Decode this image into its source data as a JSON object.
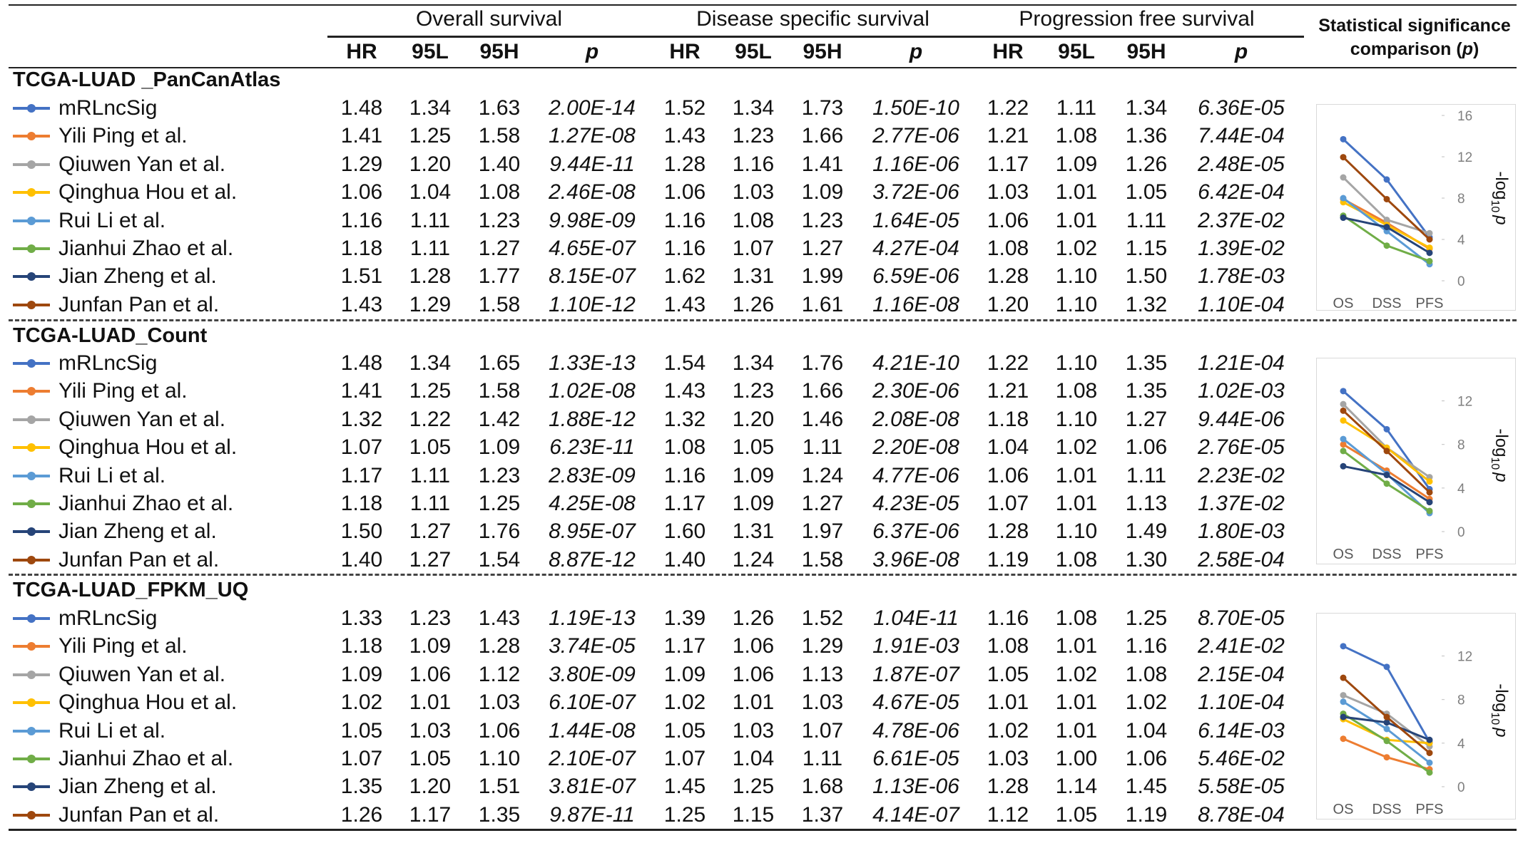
{
  "header": {
    "groups": [
      "Overall survival",
      "Disease specific survival",
      "Progression free survival"
    ],
    "columns": [
      "HR",
      "95L",
      "95H",
      "p"
    ],
    "stat_title_line1": "Statistical significance",
    "stat_title_line2": "comparison (",
    "stat_title_p": "p",
    "stat_title_close": ")"
  },
  "series_colors": [
    "#4472C4",
    "#ED7D31",
    "#A5A5A5",
    "#FFC000",
    "#5B9BD5",
    "#70AD47",
    "#264478",
    "#9E480E"
  ],
  "sections": [
    {
      "title": "TCGA-LUAD _PanCanAtlas",
      "rows": [
        {
          "label": "mRLncSig",
          "os": [
            "1.48",
            "1.34",
            "1.63",
            "2.00E-14"
          ],
          "dss": [
            "1.52",
            "1.34",
            "1.73",
            "1.50E-10"
          ],
          "pfs": [
            "1.22",
            "1.11",
            "1.34",
            "6.36E-05"
          ]
        },
        {
          "label": "Yili Ping et al.",
          "os": [
            "1.41",
            "1.25",
            "1.58",
            "1.27E-08"
          ],
          "dss": [
            "1.43",
            "1.23",
            "1.66",
            "2.77E-06"
          ],
          "pfs": [
            "1.21",
            "1.08",
            "1.36",
            "7.44E-04"
          ]
        },
        {
          "label": "Qiuwen Yan et al.",
          "os": [
            "1.29",
            "1.20",
            "1.40",
            "9.44E-11"
          ],
          "dss": [
            "1.28",
            "1.16",
            "1.41",
            "1.16E-06"
          ],
          "pfs": [
            "1.17",
            "1.09",
            "1.26",
            "2.48E-05"
          ]
        },
        {
          "label": "Qinghua Hou et al.",
          "os": [
            "1.06",
            "1.04",
            "1.08",
            "2.46E-08"
          ],
          "dss": [
            "1.06",
            "1.03",
            "1.09",
            "3.72E-06"
          ],
          "pfs": [
            "1.03",
            "1.01",
            "1.05",
            "6.42E-04"
          ]
        },
        {
          "label": "Rui Li et al.",
          "os": [
            "1.16",
            "1.11",
            "1.23",
            "9.98E-09"
          ],
          "dss": [
            "1.16",
            "1.08",
            "1.23",
            "1.64E-05"
          ],
          "pfs": [
            "1.06",
            "1.01",
            "1.11",
            "2.37E-02"
          ]
        },
        {
          "label": "Jianhui Zhao et al.",
          "os": [
            "1.18",
            "1.11",
            "1.27",
            "4.65E-07"
          ],
          "dss": [
            "1.16",
            "1.07",
            "1.27",
            "4.27E-04"
          ],
          "pfs": [
            "1.08",
            "1.02",
            "1.15",
            "1.39E-02"
          ]
        },
        {
          "label": "Jian Zheng et al.",
          "os": [
            "1.51",
            "1.28",
            "1.77",
            "8.15E-07"
          ],
          "dss": [
            "1.62",
            "1.31",
            "1.99",
            "6.59E-06"
          ],
          "pfs": [
            "1.28",
            "1.10",
            "1.50",
            "1.78E-03"
          ]
        },
        {
          "label": "Junfan Pan et al.",
          "os": [
            "1.43",
            "1.29",
            "1.58",
            "1.10E-12"
          ],
          "dss": [
            "1.43",
            "1.26",
            "1.61",
            "1.16E-08"
          ],
          "pfs": [
            "1.20",
            "1.10",
            "1.32",
            "1.10E-04"
          ]
        }
      ],
      "mini_chart": {
        "type": "line",
        "categories": [
          "OS",
          "DSS",
          "PFS"
        ],
        "ylabel": "-log10 p",
        "ylim": [
          0,
          16
        ],
        "yticks": [
          0,
          4,
          8,
          12,
          16
        ],
        "series_values": [
          [
            13.7,
            9.8,
            4.2
          ],
          [
            7.9,
            5.6,
            3.1
          ],
          [
            10.0,
            5.9,
            4.6
          ],
          [
            7.6,
            5.4,
            3.2
          ],
          [
            8.0,
            4.8,
            1.6
          ],
          [
            6.3,
            3.4,
            1.9
          ],
          [
            6.1,
            5.2,
            2.7
          ],
          [
            11.96,
            7.9,
            4.0
          ]
        ]
      }
    },
    {
      "title": "TCGA-LUAD_Count",
      "rows": [
        {
          "label": "mRLncSig",
          "os": [
            "1.48",
            "1.34",
            "1.65",
            "1.33E-13"
          ],
          "dss": [
            "1.54",
            "1.34",
            "1.76",
            "4.21E-10"
          ],
          "pfs": [
            "1.22",
            "1.10",
            "1.35",
            "1.21E-04"
          ]
        },
        {
          "label": "Yili Ping et al.",
          "os": [
            "1.41",
            "1.25",
            "1.58",
            "1.02E-08"
          ],
          "dss": [
            "1.43",
            "1.23",
            "1.66",
            "2.30E-06"
          ],
          "pfs": [
            "1.21",
            "1.08",
            "1.35",
            "1.02E-03"
          ]
        },
        {
          "label": "Qiuwen Yan et al.",
          "os": [
            "1.32",
            "1.22",
            "1.42",
            "1.88E-12"
          ],
          "dss": [
            "1.32",
            "1.20",
            "1.46",
            "2.08E-08"
          ],
          "pfs": [
            "1.18",
            "1.10",
            "1.27",
            "9.44E-06"
          ]
        },
        {
          "label": "Qinghua Hou et al.",
          "os": [
            "1.07",
            "1.05",
            "1.09",
            "6.23E-11"
          ],
          "dss": [
            "1.08",
            "1.05",
            "1.11",
            "2.20E-08"
          ],
          "pfs": [
            "1.04",
            "1.02",
            "1.06",
            "2.76E-05"
          ]
        },
        {
          "label": "Rui Li et al.",
          "os": [
            "1.17",
            "1.11",
            "1.23",
            "2.83E-09"
          ],
          "dss": [
            "1.16",
            "1.09",
            "1.24",
            "4.77E-06"
          ],
          "pfs": [
            "1.06",
            "1.01",
            "1.11",
            "2.23E-02"
          ]
        },
        {
          "label": "Jianhui Zhao et al.",
          "os": [
            "1.18",
            "1.11",
            "1.25",
            "4.25E-08"
          ],
          "dss": [
            "1.17",
            "1.09",
            "1.27",
            "4.23E-05"
          ],
          "pfs": [
            "1.07",
            "1.01",
            "1.13",
            "1.37E-02"
          ]
        },
        {
          "label": "Jian Zheng et al.",
          "os": [
            "1.50",
            "1.27",
            "1.76",
            "8.95E-07"
          ],
          "dss": [
            "1.60",
            "1.31",
            "1.97",
            "6.37E-06"
          ],
          "pfs": [
            "1.28",
            "1.10",
            "1.49",
            "1.80E-03"
          ]
        },
        {
          "label": "Junfan Pan et al.",
          "os": [
            "1.40",
            "1.27",
            "1.54",
            "8.87E-12"
          ],
          "dss": [
            "1.40",
            "1.24",
            "1.58",
            "3.96E-08"
          ],
          "pfs": [
            "1.19",
            "1.08",
            "1.30",
            "2.58E-04"
          ]
        }
      ],
      "mini_chart": {
        "type": "line",
        "categories": [
          "OS",
          "DSS",
          "PFS"
        ],
        "ylabel": "-log10 p",
        "ylim": [
          0,
          14
        ],
        "yticks": [
          0,
          4,
          8,
          12
        ],
        "series_values": [
          [
            12.9,
            9.4,
            3.9
          ],
          [
            8.0,
            5.6,
            3.0
          ],
          [
            11.7,
            7.7,
            5.0
          ],
          [
            10.2,
            7.7,
            4.6
          ],
          [
            8.5,
            5.3,
            1.7
          ],
          [
            7.4,
            4.4,
            1.9
          ],
          [
            6.0,
            5.2,
            2.7
          ],
          [
            11.1,
            7.4,
            3.6
          ]
        ]
      }
    },
    {
      "title": "TCGA-LUAD_FPKM_UQ",
      "rows": [
        {
          "label": "mRLncSig",
          "os": [
            "1.33",
            "1.23",
            "1.43",
            "1.19E-13"
          ],
          "dss": [
            "1.39",
            "1.26",
            "1.52",
            "1.04E-11"
          ],
          "pfs": [
            "1.16",
            "1.08",
            "1.25",
            "8.70E-05"
          ]
        },
        {
          "label": "Yili Ping et al.",
          "os": [
            "1.18",
            "1.09",
            "1.28",
            "3.74E-05"
          ],
          "dss": [
            "1.17",
            "1.06",
            "1.29",
            "1.91E-03"
          ],
          "pfs": [
            "1.08",
            "1.01",
            "1.16",
            "2.41E-02"
          ]
        },
        {
          "label": "Qiuwen Yan et al.",
          "os": [
            "1.09",
            "1.06",
            "1.12",
            "3.80E-09"
          ],
          "dss": [
            "1.09",
            "1.06",
            "1.13",
            "1.87E-07"
          ],
          "pfs": [
            "1.05",
            "1.02",
            "1.08",
            "2.15E-04"
          ]
        },
        {
          "label": "Qinghua Hou et al.",
          "os": [
            "1.02",
            "1.01",
            "1.03",
            "6.10E-07"
          ],
          "dss": [
            "1.02",
            "1.01",
            "1.03",
            "4.67E-05"
          ],
          "pfs": [
            "1.01",
            "1.01",
            "1.02",
            "1.10E-04"
          ]
        },
        {
          "label": "Rui Li et al.",
          "os": [
            "1.05",
            "1.03",
            "1.06",
            "1.44E-08"
          ],
          "dss": [
            "1.05",
            "1.03",
            "1.07",
            "4.78E-06"
          ],
          "pfs": [
            "1.02",
            "1.01",
            "1.04",
            "6.14E-03"
          ]
        },
        {
          "label": "Jianhui Zhao et al.",
          "os": [
            "1.07",
            "1.05",
            "1.10",
            "2.10E-07"
          ],
          "dss": [
            "1.07",
            "1.04",
            "1.11",
            "6.61E-05"
          ],
          "pfs": [
            "1.03",
            "1.00",
            "1.06",
            "5.46E-02"
          ]
        },
        {
          "label": "Jian Zheng et al.",
          "os": [
            "1.35",
            "1.20",
            "1.51",
            "3.81E-07"
          ],
          "dss": [
            "1.45",
            "1.25",
            "1.68",
            "1.13E-06"
          ],
          "pfs": [
            "1.28",
            "1.14",
            "1.45",
            "5.58E-05"
          ]
        },
        {
          "label": "Junfan Pan et al.",
          "os": [
            "1.26",
            "1.17",
            "1.35",
            "9.87E-11"
          ],
          "dss": [
            "1.25",
            "1.15",
            "1.37",
            "4.14E-07"
          ],
          "pfs": [
            "1.12",
            "1.05",
            "1.19",
            "8.78E-04"
          ]
        }
      ],
      "mini_chart": {
        "type": "line",
        "categories": [
          "OS",
          "DSS",
          "PFS"
        ],
        "ylabel": "-log10 p",
        "ylim": [
          0,
          14
        ],
        "yticks": [
          0,
          4,
          8,
          12
        ],
        "series_values": [
          [
            12.9,
            11.0,
            4.1
          ],
          [
            4.4,
            2.7,
            1.6
          ],
          [
            8.4,
            6.7,
            3.7
          ],
          [
            6.2,
            4.3,
            4.0
          ],
          [
            7.8,
            5.3,
            2.2
          ],
          [
            6.7,
            4.2,
            1.3
          ],
          [
            6.4,
            5.9,
            4.3
          ],
          [
            10.0,
            6.4,
            3.1
          ]
        ]
      }
    }
  ],
  "chart_data": [
    {
      "type": "line",
      "categories": [
        "OS",
        "DSS",
        "PFS"
      ],
      "ylabel": "-log10 p",
      "ylim": [
        0,
        16
      ],
      "series": [
        {
          "name": "mRLncSig",
          "values": [
            13.7,
            9.8,
            4.2
          ]
        },
        {
          "name": "Yili Ping et al.",
          "values": [
            7.9,
            5.6,
            3.1
          ]
        },
        {
          "name": "Qiuwen Yan et al.",
          "values": [
            10.0,
            5.9,
            4.6
          ]
        },
        {
          "name": "Qinghua Hou et al.",
          "values": [
            7.6,
            5.4,
            3.2
          ]
        },
        {
          "name": "Rui Li et al.",
          "values": [
            8.0,
            4.8,
            1.6
          ]
        },
        {
          "name": "Jianhui Zhao et al.",
          "values": [
            6.3,
            3.4,
            1.9
          ]
        },
        {
          "name": "Jian Zheng et al.",
          "values": [
            6.1,
            5.2,
            2.7
          ]
        },
        {
          "name": "Junfan Pan et al.",
          "values": [
            11.96,
            7.9,
            4.0
          ]
        }
      ]
    },
    {
      "type": "line",
      "categories": [
        "OS",
        "DSS",
        "PFS"
      ],
      "ylabel": "-log10 p",
      "ylim": [
        0,
        14
      ],
      "series": [
        {
          "name": "mRLncSig",
          "values": [
            12.9,
            9.4,
            3.9
          ]
        },
        {
          "name": "Yili Ping et al.",
          "values": [
            8.0,
            5.6,
            3.0
          ]
        },
        {
          "name": "Qiuwen Yan et al.",
          "values": [
            11.7,
            7.7,
            5.0
          ]
        },
        {
          "name": "Qinghua Hou et al.",
          "values": [
            10.2,
            7.7,
            4.6
          ]
        },
        {
          "name": "Rui Li et al.",
          "values": [
            8.5,
            5.3,
            1.7
          ]
        },
        {
          "name": "Jianhui Zhao et al.",
          "values": [
            7.4,
            4.4,
            1.9
          ]
        },
        {
          "name": "Jian Zheng et al.",
          "values": [
            6.0,
            5.2,
            2.7
          ]
        },
        {
          "name": "Junfan Pan et al.",
          "values": [
            11.1,
            7.4,
            3.6
          ]
        }
      ]
    },
    {
      "type": "line",
      "categories": [
        "OS",
        "DSS",
        "PFS"
      ],
      "ylabel": "-log10 p",
      "ylim": [
        0,
        14
      ],
      "series": [
        {
          "name": "mRLncSig",
          "values": [
            12.9,
            11.0,
            4.1
          ]
        },
        {
          "name": "Yili Ping et al.",
          "values": [
            4.4,
            2.7,
            1.6
          ]
        },
        {
          "name": "Qiuwen Yan et al.",
          "values": [
            8.4,
            6.7,
            3.7
          ]
        },
        {
          "name": "Qinghua Hou et al.",
          "values": [
            6.2,
            4.3,
            4.0
          ]
        },
        {
          "name": "Rui Li et al.",
          "values": [
            7.8,
            5.3,
            2.2
          ]
        },
        {
          "name": "Jianhui Zhao et al.",
          "values": [
            6.7,
            4.2,
            1.3
          ]
        },
        {
          "name": "Jian Zheng et al.",
          "values": [
            6.4,
            5.9,
            4.3
          ]
        },
        {
          "name": "Junfan Pan et al.",
          "values": [
            10.0,
            6.4,
            3.1
          ]
        }
      ]
    }
  ]
}
